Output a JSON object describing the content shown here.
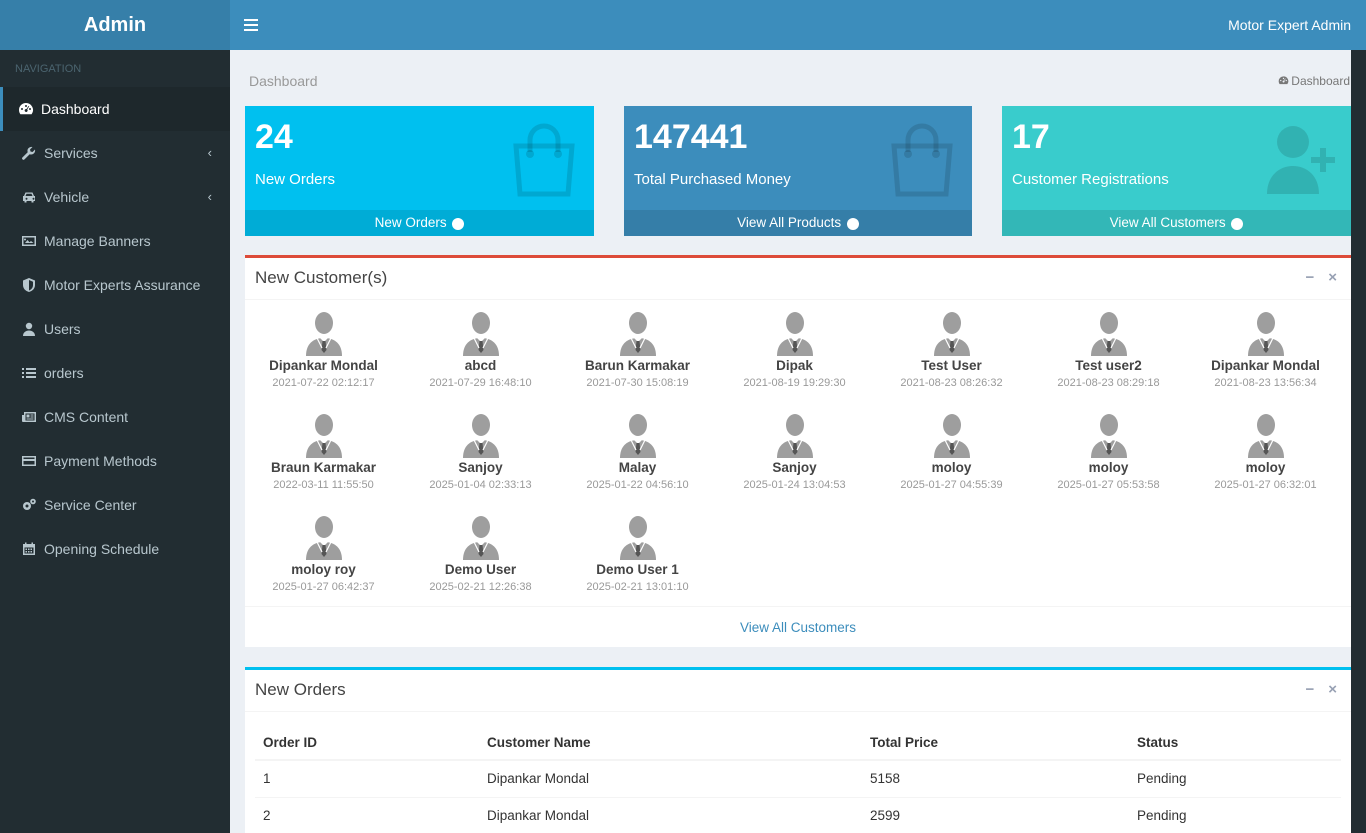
{
  "logo": "Admin",
  "header": {
    "user_name": "Motor Expert Admin"
  },
  "sidebar": {
    "section": "NAVIGATION",
    "items": [
      {
        "label": "Dashboard",
        "icon": "dashboard-icon"
      },
      {
        "label": "Services",
        "icon": "wrench-icon",
        "caret": "‹"
      },
      {
        "label": "Vehicle",
        "icon": "car-icon",
        "caret": "‹"
      },
      {
        "label": "Manage Banners",
        "icon": "image-icon"
      },
      {
        "label": "Motor Experts Assurance",
        "icon": "shield-icon"
      },
      {
        "label": "Users",
        "icon": "user-icon"
      },
      {
        "label": "orders",
        "icon": "list-icon"
      },
      {
        "label": "CMS Content",
        "icon": "newspaper-icon"
      },
      {
        "label": "Payment Methods",
        "icon": "credit-card-icon"
      },
      {
        "label": "Service Center",
        "icon": "cogs-icon"
      },
      {
        "label": "Opening Schedule",
        "icon": "calendar-icon"
      }
    ]
  },
  "page": {
    "title": "Dashboard",
    "breadcrumb": "Dashboard"
  },
  "stats": [
    {
      "value": "24",
      "label": "New Orders",
      "link": "New Orders",
      "color": "#00c0ef"
    },
    {
      "value": "147441",
      "label": "Total Purchased Money",
      "link": "View All Products",
      "color": "#3c8dbc"
    },
    {
      "value": "17",
      "label": "Customer Registrations",
      "link": "View All Customers",
      "color": "#39cccc"
    }
  ],
  "customers_box": {
    "title": "New Customer(s)",
    "footer": "View All Customers",
    "users": [
      {
        "name": "Dipankar Mondal",
        "date": "2021-07-22 02:12:17"
      },
      {
        "name": "abcd",
        "date": "2021-07-29 16:48:10"
      },
      {
        "name": "Barun Karmakar",
        "date": "2021-07-30 15:08:19"
      },
      {
        "name": "Dipak",
        "date": "2021-08-19 19:29:30"
      },
      {
        "name": "Test User",
        "date": "2021-08-23 08:26:32"
      },
      {
        "name": "Test user2",
        "date": "2021-08-23 08:29:18"
      },
      {
        "name": "Dipankar Mondal",
        "date": "2021-08-23 13:56:34"
      },
      {
        "name": "Braun Karmakar",
        "date": "2022-03-11 11:55:50"
      },
      {
        "name": "Sanjoy",
        "date": "2025-01-04 02:33:13"
      },
      {
        "name": "Malay",
        "date": "2025-01-22 04:56:10"
      },
      {
        "name": "Sanjoy",
        "date": "2025-01-24 13:04:53"
      },
      {
        "name": "moloy",
        "date": "2025-01-27 04:55:39"
      },
      {
        "name": "moloy",
        "date": "2025-01-27 05:53:58"
      },
      {
        "name": "moloy",
        "date": "2025-01-27 06:32:01"
      },
      {
        "name": "moloy roy",
        "date": "2025-01-27 06:42:37"
      },
      {
        "name": "Demo User",
        "date": "2025-02-21 12:26:38"
      },
      {
        "name": "Demo User 1",
        "date": "2025-02-21 13:01:10"
      }
    ]
  },
  "orders_box": {
    "title": "New Orders",
    "columns": [
      "Order ID",
      "Customer Name",
      "Total Price",
      "Status"
    ],
    "rows": [
      [
        "1",
        "Dipankar Mondal",
        "5158",
        "Pending"
      ],
      [
        "2",
        "Dipankar Mondal",
        "2599",
        "Pending"
      ]
    ]
  },
  "box_tools": {
    "collapse": "−",
    "remove": "×"
  },
  "colors": {
    "customers_border": "#dd4b39",
    "orders_border": "#00c0ef"
  }
}
